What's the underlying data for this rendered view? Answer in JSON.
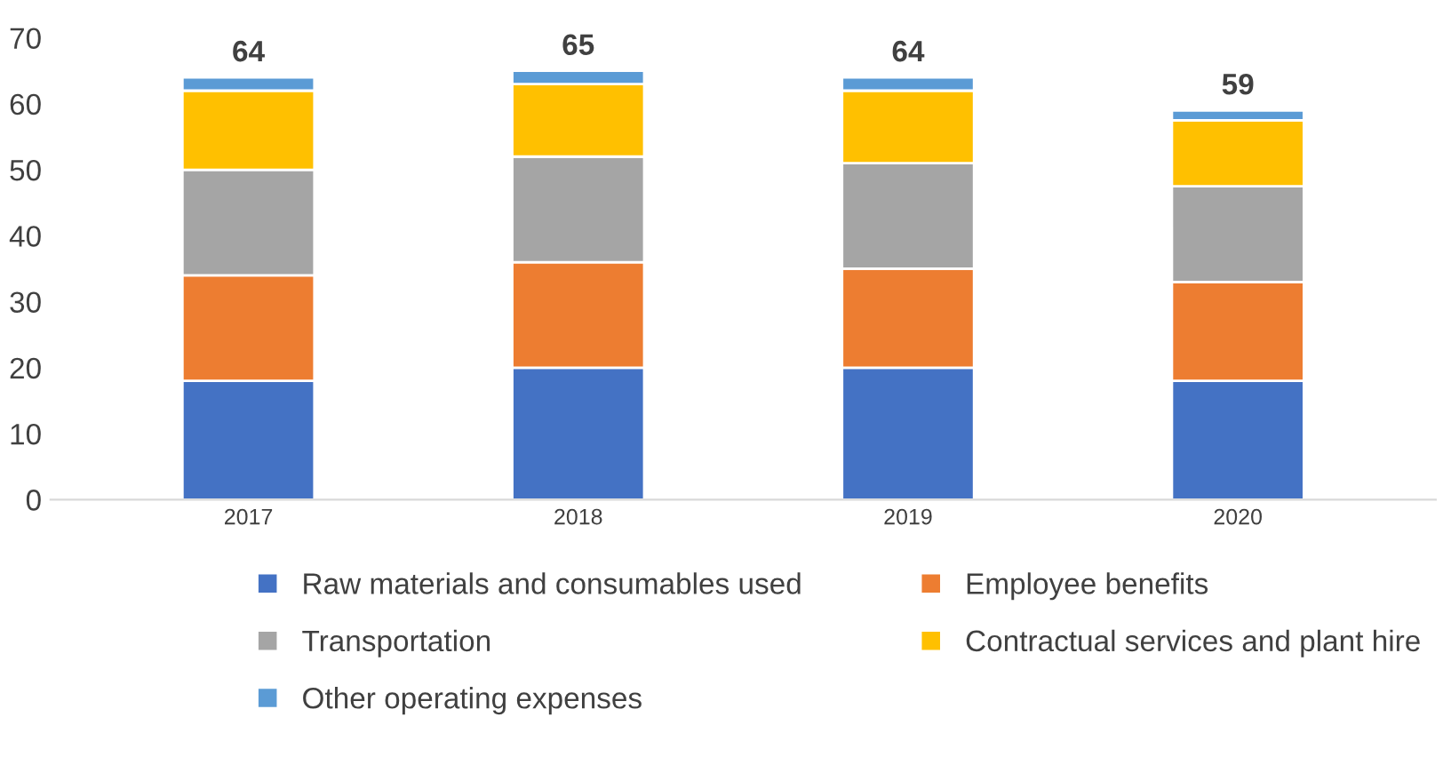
{
  "chart_data": {
    "type": "bar",
    "stacked": true,
    "categories": [
      "2017",
      "2018",
      "2019",
      "2020"
    ],
    "series": [
      {
        "name": "Raw materials and consumables used",
        "color": "#4472c4",
        "values": [
          18,
          20,
          20,
          18
        ]
      },
      {
        "name": "Employee benefits",
        "color": "#ed7d31",
        "values": [
          16,
          16,
          15,
          15
        ]
      },
      {
        "name": "Transportation",
        "color": "#a5a5a5",
        "values": [
          16,
          16,
          16,
          14.5
        ]
      },
      {
        "name": "Contractual services and plant hire",
        "color": "#ffc000",
        "values": [
          12,
          11,
          11,
          10
        ]
      },
      {
        "name": "Other operating expenses",
        "color": "#5b9bd5",
        "values": [
          2,
          2,
          2,
          1.5
        ]
      }
    ],
    "totals": [
      "64",
      "65",
      "64",
      "59"
    ],
    "ylim": [
      0,
      70
    ],
    "yticks": [
      0,
      10,
      20,
      30,
      40,
      50,
      60,
      70
    ],
    "grid": false,
    "legend": "bottom"
  }
}
